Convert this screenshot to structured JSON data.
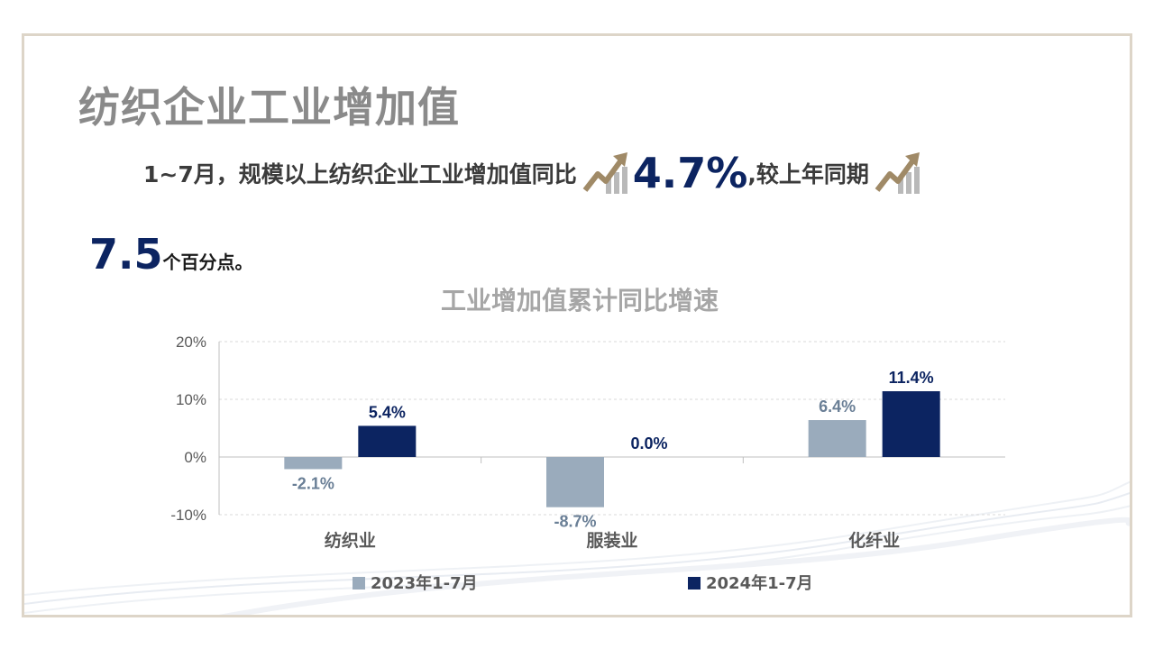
{
  "slide": {
    "title": "纺织企业工业增加值",
    "summary": {
      "part1": "1~7月，规模以上纺织企业工业增加值同比",
      "value1": "4.7%",
      "part2": ",较上年同期",
      "value2": "7.5",
      "part3": "个百分点。",
      "trend_icon": "trend-up-arrow-icon"
    }
  },
  "colors": {
    "series_2023": "#9aabbc",
    "series_2024": "#0c2461",
    "label_2023": "#6a7f96",
    "label_2024": "#0c2461",
    "accent_gold": "#a08a67"
  },
  "chart_data": {
    "type": "bar",
    "title": "工业增加值累计同比增速",
    "categories": [
      "纺织业",
      "服装业",
      "化纤业"
    ],
    "series": [
      {
        "name": "2023年1-7月",
        "values": [
          -2.1,
          -8.7,
          6.4
        ],
        "labels": [
          "-2.1%",
          "-8.7%",
          "6.4%"
        ]
      },
      {
        "name": "2024年1-7月",
        "values": [
          5.4,
          0.0,
          11.4
        ],
        "labels": [
          "5.4%",
          "0.0%",
          "11.4%"
        ]
      }
    ],
    "ylim": [
      -10,
      20
    ],
    "yticks": [
      -10,
      0,
      10,
      20
    ],
    "ytick_labels": [
      "-10%",
      "0%",
      "10%",
      "20%"
    ],
    "grid": true,
    "legend_position": "bottom"
  }
}
